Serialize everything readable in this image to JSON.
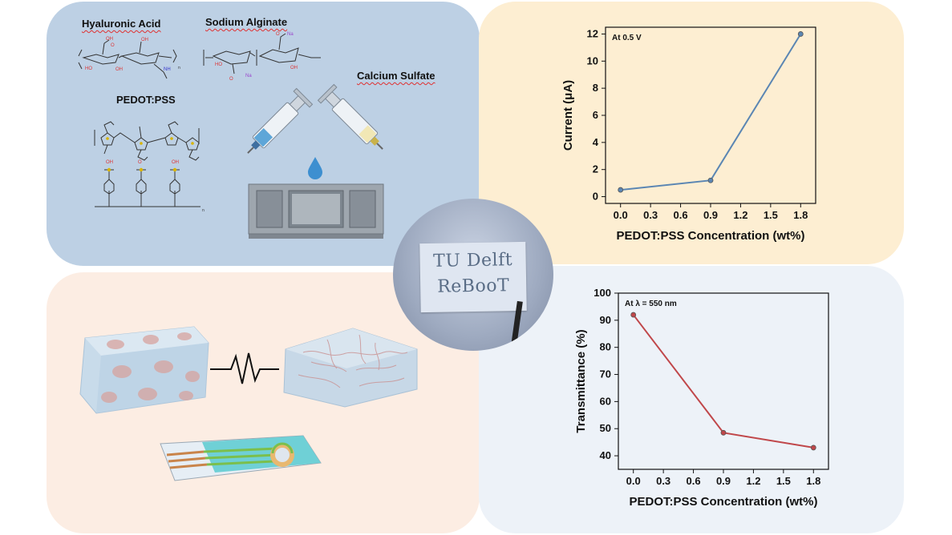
{
  "materials": {
    "hyaluronic_acid": "Hyaluronic Acid",
    "sodium_alginate": "Sodium Alginate",
    "calcium_sulfate": "Calcium Sulfate",
    "pedot_pss": "PEDOT:PSS"
  },
  "sample_photo": {
    "line1": "TU Delft",
    "line2": "ReBooT"
  },
  "chart_data": [
    {
      "type": "line",
      "annotation": "At 0.5 V",
      "xlabel": "PEDOT:PSS Concentration (wt%)",
      "ylabel": "Current (μA)",
      "x": [
        0.0,
        0.9,
        1.8
      ],
      "y": [
        0.5,
        1.2,
        12.0
      ],
      "xlim": [
        -0.15,
        1.95
      ],
      "ylim": [
        -0.5,
        12.5
      ],
      "xticks": [
        "0.0",
        "0.3",
        "0.6",
        "0.9",
        "1.2",
        "1.5",
        "1.8"
      ],
      "yticks": [
        "0",
        "2",
        "4",
        "6",
        "8",
        "10",
        "12"
      ],
      "color": "#5b86b3"
    },
    {
      "type": "line",
      "annotation": "At λ = 550 nm",
      "xlabel": "PEDOT:PSS Concentration (wt%)",
      "ylabel": "Transmittance (%)",
      "x": [
        0.0,
        0.9,
        1.8
      ],
      "y": [
        92,
        48.5,
        43
      ],
      "xlim": [
        -0.15,
        1.95
      ],
      "ylim": [
        35,
        100
      ],
      "xticks": [
        "0.0",
        "0.3",
        "0.6",
        "0.9",
        "1.2",
        "1.5",
        "1.8"
      ],
      "yticks": [
        "40",
        "50",
        "60",
        "70",
        "80",
        "90",
        "100"
      ],
      "color": "#c0474a"
    }
  ]
}
